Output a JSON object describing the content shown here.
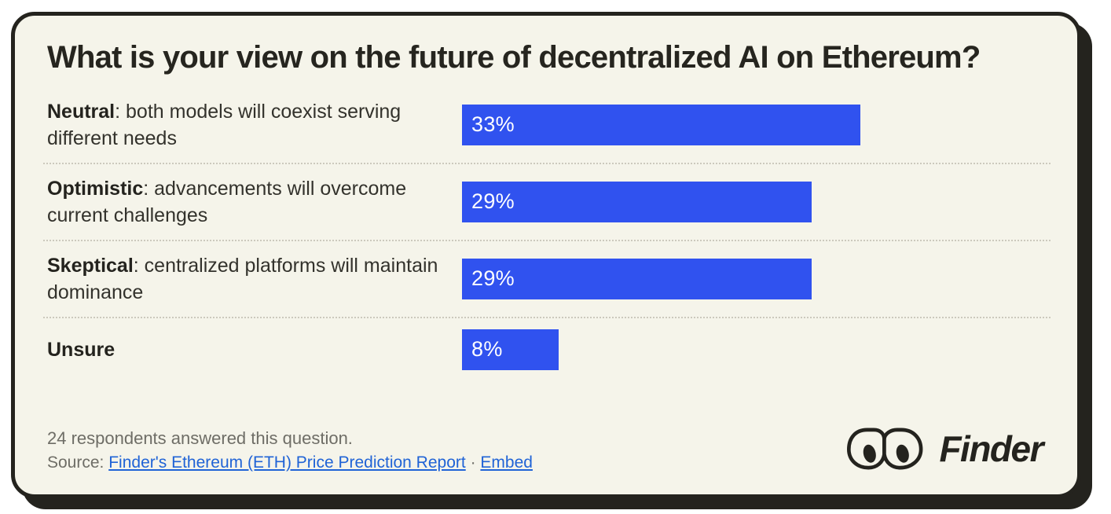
{
  "title": "What is your view on the future of decentralized AI on Ethereum?",
  "chart_data": {
    "type": "bar",
    "orientation": "horizontal",
    "title": "What is your view on the future of decentralized AI on Ethereum?",
    "categories": [
      "Neutral: both models will coexist serving different needs",
      "Optimistic: advancements will overcome current challenges",
      "Skeptical: centralized platforms will maintain dominance",
      "Unsure"
    ],
    "values": [
      33,
      29,
      29,
      8
    ],
    "value_labels": [
      "33%",
      "29%",
      "29%",
      "8%"
    ],
    "unit": "percent",
    "bar_color": "#3052ef",
    "value_label_position": "inside-left",
    "grid": false,
    "legend": false
  },
  "rows": [
    {
      "term": "Neutral",
      "description": ": both models will coexist serving different needs",
      "value": 33,
      "label": "33%"
    },
    {
      "term": "Optimistic",
      "description": ": advancements will overcome current challenges",
      "value": 29,
      "label": "29%"
    },
    {
      "term": "Skeptical",
      "description": ": centralized platforms will maintain dominance",
      "value": 29,
      "label": "29%"
    },
    {
      "term": "Unsure",
      "description": "",
      "value": 8,
      "label": "8%"
    }
  ],
  "footer": {
    "respondents_text": "24 respondents answered this question.",
    "source_label": "Source:",
    "source_link_text": "Finder's Ethereum (ETH) Price Prediction Report",
    "separator": "·",
    "embed_link_text": "Embed",
    "logo_text": "Finder"
  },
  "colors": {
    "card_background": "#f5f4ea",
    "border_black": "#24231e",
    "bar_blue": "#3052ef",
    "link_blue": "#2063d6",
    "muted_text": "#6e6d66",
    "divider": "#ccc9bd"
  }
}
